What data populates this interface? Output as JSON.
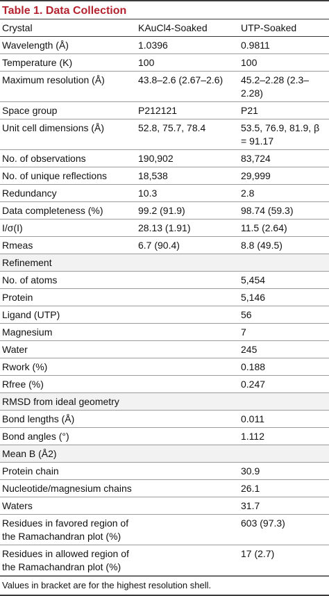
{
  "title": "Table 1.  Data Collection",
  "header": {
    "label": "Crystal",
    "col1": "KAuCl4-Soaked",
    "col2": "UTP-Soaked"
  },
  "collection": [
    {
      "label": "Wavelength (Å)",
      "v1": "1.0396",
      "v2": "0.9811"
    },
    {
      "label": "Temperature (K)",
      "v1": "100",
      "v2": "100"
    },
    {
      "label": "Maximum resolution (Å)",
      "v1": "43.8–2.6 (2.67–2.6)",
      "v2": "45.2–2.28 (2.3–2.28)"
    },
    {
      "label": "Space group",
      "v1": "P212121",
      "v2": "P21"
    },
    {
      "label": "Unit cell dimensions (Å)",
      "v1": "52.8, 75.7, 78.4",
      "v2": "53.5, 76.9, 81.9, β = 91.17"
    },
    {
      "label": "No. of observations",
      "v1": "190,902",
      "v2": "83,724"
    },
    {
      "label": "No. of unique reflections",
      "v1": "18,538",
      "v2": "29,999"
    },
    {
      "label": "Redundancy",
      "v1": "10.3",
      "v2": "2.8"
    },
    {
      "label": "Data completeness (%)",
      "v1": "99.2 (91.9)",
      "v2": "98.74 (59.3)"
    },
    {
      "label": "I/σ(I)",
      "v1": "28.13 (1.91)",
      "v2": "11.5 (2.64)"
    },
    {
      "label": "Rmeas",
      "v1": "6.7 (90.4)",
      "v2": "8.8 (49.5)"
    }
  ],
  "refinement": {
    "heading": "Refinement",
    "rows": [
      {
        "label": "No. of atoms",
        "v2": "5,454"
      },
      {
        "label": "Protein",
        "v2": "5,146"
      },
      {
        "label": "Ligand (UTP)",
        "v2": "56"
      },
      {
        "label": "Magnesium",
        "v2": "7"
      },
      {
        "label": "Water",
        "v2": "245"
      },
      {
        "label": "Rwork (%)",
        "v2": "0.188"
      },
      {
        "label": "Rfree (%)",
        "v2": "0.247"
      }
    ]
  },
  "rmsd": {
    "heading": "RMSD from ideal geometry",
    "rows": [
      {
        "label": "Bond lengths (Å)",
        "v2": "0.011"
      },
      {
        "label": "Bond angles (°)",
        "v2": "1.112"
      }
    ]
  },
  "meanb": {
    "heading": "Mean B (Å2)",
    "rows": [
      {
        "label": "Protein chain",
        "v2": "30.9"
      },
      {
        "label": "Nucleotide/magnesium chains",
        "v2": "26.1"
      },
      {
        "label": "Waters",
        "v2": "31.7"
      }
    ]
  },
  "rama": [
    {
      "label": "Residues in favored region of the Ramachandran plot (%)",
      "v2": "603 (97.3)"
    },
    {
      "label": "Residues in allowed region of the Ramachandran plot (%)",
      "v2": "17 (2.7)"
    }
  ],
  "footnote": "Values in bracket are for the highest resolution shell."
}
